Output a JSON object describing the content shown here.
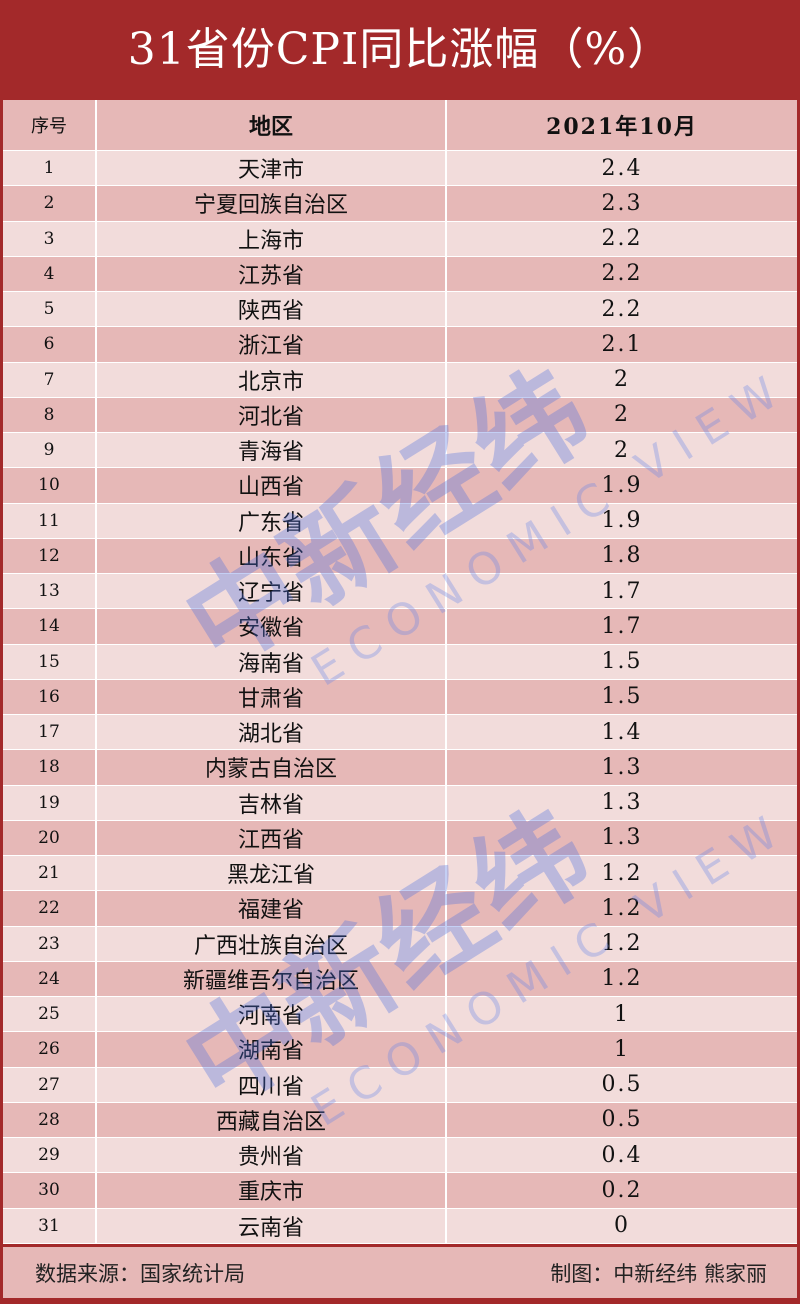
{
  "title": "31省份CPI同比涨幅（%）",
  "watermark": {
    "cn": "中新经纬",
    "en": "ECONOMIC VIEW"
  },
  "chart_data": {
    "type": "table",
    "title": "31省份CPI同比涨幅（%）",
    "columns": [
      "序号",
      "地区",
      "2021年10月"
    ],
    "rows": [
      [
        "1",
        "天津市",
        "2.4"
      ],
      [
        "2",
        "宁夏回族自治区",
        "2.3"
      ],
      [
        "3",
        "上海市",
        "2.2"
      ],
      [
        "4",
        "江苏省",
        "2.2"
      ],
      [
        "5",
        "陕西省",
        "2.2"
      ],
      [
        "6",
        "浙江省",
        "2.1"
      ],
      [
        "7",
        "北京市",
        "2"
      ],
      [
        "8",
        "河北省",
        "2"
      ],
      [
        "9",
        "青海省",
        "2"
      ],
      [
        "10",
        "山西省",
        "1.9"
      ],
      [
        "11",
        "广东省",
        "1.9"
      ],
      [
        "12",
        "山东省",
        "1.8"
      ],
      [
        "13",
        "辽宁省",
        "1.7"
      ],
      [
        "14",
        "安徽省",
        "1.7"
      ],
      [
        "15",
        "海南省",
        "1.5"
      ],
      [
        "16",
        "甘肃省",
        "1.5"
      ],
      [
        "17",
        "湖北省",
        "1.4"
      ],
      [
        "18",
        "内蒙古自治区",
        "1.3"
      ],
      [
        "19",
        "吉林省",
        "1.3"
      ],
      [
        "20",
        "江西省",
        "1.3"
      ],
      [
        "21",
        "黑龙江省",
        "1.2"
      ],
      [
        "22",
        "福建省",
        "1.2"
      ],
      [
        "23",
        "广西壮族自治区",
        "1.2"
      ],
      [
        "24",
        "新疆维吾尔自治区",
        "1.2"
      ],
      [
        "25",
        "河南省",
        "1"
      ],
      [
        "26",
        "湖南省",
        "1"
      ],
      [
        "27",
        "四川省",
        "0.5"
      ],
      [
        "28",
        "西藏自治区",
        "0.5"
      ],
      [
        "29",
        "贵州省",
        "0.4"
      ],
      [
        "30",
        "重庆市",
        "0.2"
      ],
      [
        "31",
        "云南省",
        "0"
      ]
    ]
  },
  "footer": {
    "source": "数据来源：国家统计局",
    "credit": "制图：中新经纬 熊家丽"
  },
  "colors": {
    "title_bg": "#a3292a",
    "row_light": "#f2dcdb",
    "row_dark": "#e6b8b7"
  }
}
